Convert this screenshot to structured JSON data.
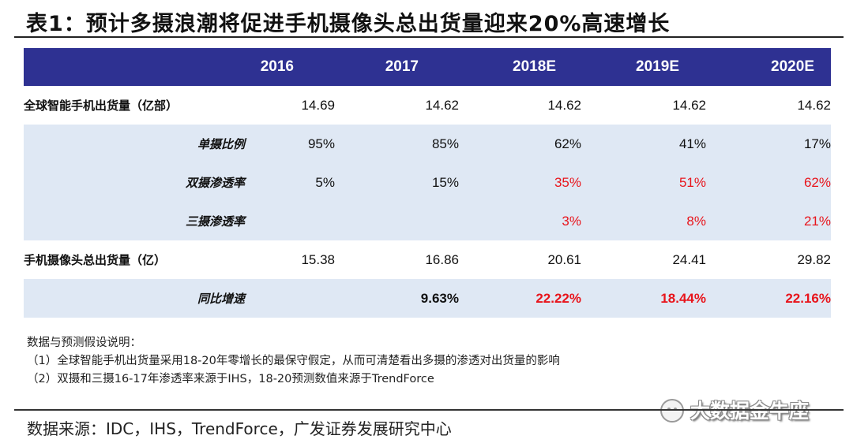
{
  "title": "表1：预计多摄浪潮将促进手机摄像头总出货量迎来20%高速增长",
  "table": {
    "headers": [
      "",
      "2016",
      "2017",
      "2018E",
      "2019E",
      "2020E"
    ],
    "rows": [
      {
        "label": "全球智能手机出货量（亿部）",
        "values": [
          "14.69",
          "14.62",
          "14.62",
          "14.62",
          "14.62"
        ]
      },
      {
        "label": "单摄比例",
        "values": [
          "95%",
          "85%",
          "62%",
          "41%",
          "17%"
        ]
      },
      {
        "label": "双摄渗透率",
        "values": [
          "5%",
          "15%",
          "35%",
          "51%",
          "62%"
        ]
      },
      {
        "label": "三摄渗透率",
        "values": [
          "",
          "",
          "3%",
          "8%",
          "21%"
        ]
      },
      {
        "label": "手机摄像头总出货量（亿）",
        "values": [
          "15.38",
          "16.86",
          "20.61",
          "24.41",
          "29.82"
        ]
      },
      {
        "label": "同比增速",
        "values": [
          "",
          "9.63%",
          "22.22%",
          "18.44%",
          "22.16%"
        ]
      }
    ],
    "colors": {
      "header_bg": "#2e3192",
      "shade_bg": "#dfe8f4",
      "forecast_red": "#e8141b"
    }
  },
  "notes": [
    "数据与预测假设说明：",
    "（1）全球智能手机出货量采用18-20年零增长的最保守假定，从而可清楚看出多摄的渗透对出货量的影响",
    "（2）双摄和三摄16-17年渗透率来源于IHS，18-20预测数值来源于TrendForce"
  ],
  "watermark": {
    "text": "大数据金牛座",
    "icon": "wechat-icon"
  },
  "source": "数据来源：IDC，IHS，TrendForce，广发证券发展研究中心"
}
